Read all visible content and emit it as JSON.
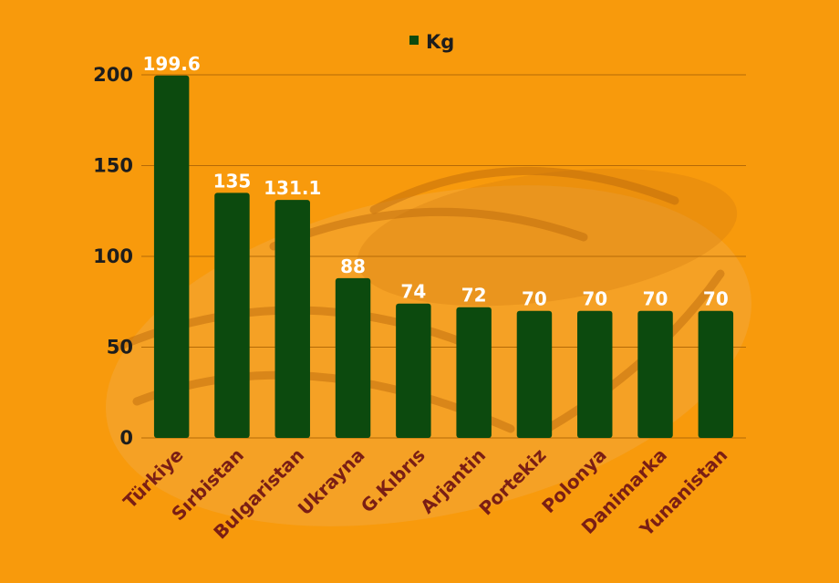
{
  "colors": {
    "background": "#f89a0c",
    "bar": "#0c4a0e",
    "grid": "#b56a06",
    "category_label": "#7a1e14",
    "data_label": "#ffffff",
    "tick_label": "#1d1d1d"
  },
  "chart_data": {
    "type": "bar",
    "categories": [
      "Türkiye",
      "Sırbistan",
      "Bulgaristan",
      "Ukrayna",
      "G.Kıbrıs",
      "Arjantin",
      "Portekiz",
      "Polonya",
      "Danimarka",
      "Yunanistan"
    ],
    "series": [
      {
        "name": "Kg",
        "values": [
          199.6,
          135,
          131.1,
          88,
          74,
          72,
          70,
          70,
          70,
          70
        ],
        "labels": [
          "199.6",
          "135",
          "131.1",
          "88",
          "74",
          "72",
          "70",
          "70",
          "70",
          "70"
        ]
      }
    ],
    "yticks": [
      0,
      50,
      100,
      150,
      200
    ],
    "ylim": [
      0,
      200
    ],
    "grid": true,
    "legend_position": "top-center"
  }
}
